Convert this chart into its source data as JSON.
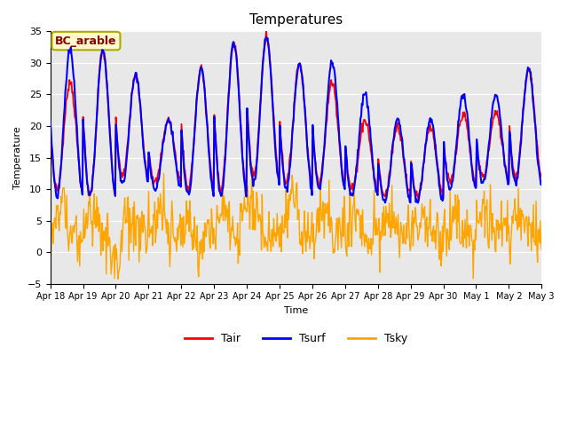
{
  "title": "Temperatures",
  "xlabel": "Time",
  "ylabel": "Temperature",
  "ylim": [
    -5,
    35
  ],
  "yticks": [
    -5,
    0,
    5,
    10,
    15,
    20,
    25,
    30,
    35
  ],
  "annotation_text": "BC_arable",
  "annotation_color": "#8B0000",
  "annotation_bg": "#FFFACD",
  "annotation_edge_color": "#AAAA00",
  "legend_labels": [
    "Tair",
    "Tsurf",
    "Tsky"
  ],
  "line_colors": [
    "red",
    "blue",
    "#FFA500"
  ],
  "bg_color": "#E8E8E8",
  "title_fontsize": 11,
  "tick_labels": [
    "Apr 18",
    "Apr 19",
    "Apr 20",
    "Apr 21",
    "Apr 22",
    "Apr 23",
    "Apr 24",
    "Apr 25",
    "Apr 26",
    "Apr 27",
    "Apr 28",
    "Apr 29",
    "Apr 30",
    "May 1",
    "May 2",
    "May 3"
  ]
}
